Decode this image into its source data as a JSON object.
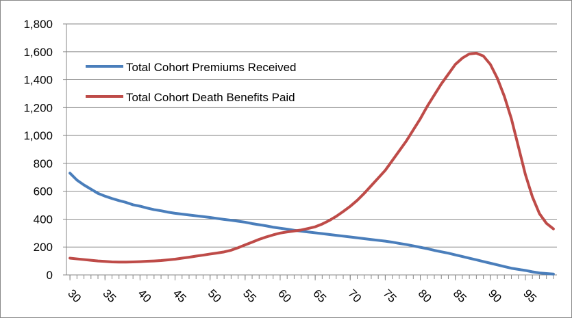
{
  "chart_data": {
    "type": "line",
    "x": [
      30,
      31,
      32,
      33,
      34,
      35,
      36,
      37,
      38,
      39,
      40,
      41,
      42,
      43,
      44,
      45,
      46,
      47,
      48,
      49,
      50,
      51,
      52,
      53,
      54,
      55,
      56,
      57,
      58,
      59,
      60,
      61,
      62,
      63,
      64,
      65,
      66,
      67,
      68,
      69,
      70,
      71,
      72,
      73,
      74,
      75,
      76,
      77,
      78,
      79,
      80,
      81,
      82,
      83,
      84,
      85,
      86,
      87,
      88,
      89,
      90,
      91,
      92,
      93,
      94,
      95,
      96,
      97,
      98,
      99
    ],
    "series": [
      {
        "name": "Total Cohort Premiums Received",
        "color": "#4a7ebb",
        "values": [
          730,
          680,
          645,
          615,
          585,
          565,
          548,
          533,
          520,
          503,
          493,
          480,
          468,
          460,
          450,
          442,
          436,
          430,
          424,
          418,
          412,
          405,
          398,
          392,
          385,
          378,
          368,
          360,
          352,
          342,
          335,
          328,
          320,
          314,
          308,
          302,
          296,
          290,
          284,
          278,
          272,
          266,
          260,
          254,
          248,
          242,
          235,
          226,
          218,
          208,
          198,
          188,
          176,
          166,
          156,
          144,
          132,
          120,
          108,
          96,
          84,
          72,
          60,
          48,
          40,
          32,
          22,
          14,
          10,
          6
        ]
      },
      {
        "name": "Total Cohort Death Benefits Paid",
        "color": "#be4b48",
        "values": [
          120,
          115,
          110,
          105,
          100,
          97,
          93,
          92,
          92,
          93,
          95,
          98,
          100,
          103,
          108,
          113,
          120,
          127,
          135,
          142,
          150,
          157,
          165,
          177,
          195,
          215,
          235,
          255,
          272,
          287,
          300,
          308,
          315,
          322,
          333,
          345,
          365,
          390,
          420,
          455,
          492,
          535,
          585,
          640,
          695,
          750,
          820,
          890,
          960,
          1040,
          1120,
          1210,
          1290,
          1370,
          1440,
          1510,
          1555,
          1585,
          1590,
          1570,
          1510,
          1410,
          1280,
          1120,
          920,
          720,
          560,
          440,
          370,
          330
        ]
      }
    ],
    "xlim": [
      29.5,
      99.5
    ],
    "xticks": [
      30,
      35,
      40,
      45,
      50,
      55,
      60,
      65,
      70,
      75,
      80,
      85,
      90,
      95
    ],
    "ylim": [
      0,
      1800
    ],
    "yticks": [
      0,
      200,
      400,
      600,
      800,
      {
        "value": 1000,
        "label": "1,000"
      },
      {
        "value": 1200,
        "label": "1,200"
      },
      {
        "value": 1400,
        "label": "1,400"
      },
      {
        "value": 1600,
        "label": "1,600"
      },
      {
        "value": 1800,
        "label": "1,800"
      }
    ],
    "grid": true,
    "legend": "upper left"
  }
}
